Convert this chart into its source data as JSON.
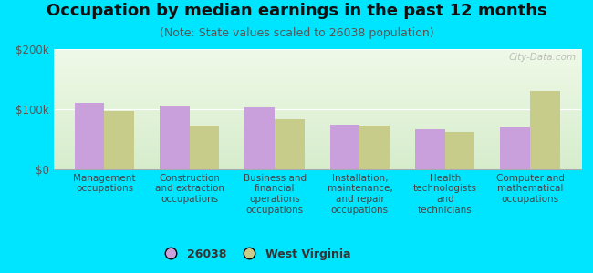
{
  "title": "Occupation by median earnings in the past 12 months",
  "subtitle": "(Note: State values scaled to 26038 population)",
  "categories": [
    "Management\noccupations",
    "Construction\nand extraction\noccupations",
    "Business and\nfinancial\noperations\noccupations",
    "Installation,\nmaintenance,\nand repair\noccupations",
    "Health\ntechnologists\nand\ntechnicians",
    "Computer and\nmathematical\noccupations"
  ],
  "values_26038": [
    110000,
    106000,
    103000,
    75000,
    67000,
    70000
  ],
  "values_wv": [
    97000,
    72000,
    84000,
    73000,
    62000,
    130000
  ],
  "color_26038": "#c9a0dc",
  "color_wv": "#c8cc8a",
  "ylim": [
    0,
    200000
  ],
  "yticks": [
    0,
    100000,
    200000
  ],
  "ytick_labels": [
    "$0",
    "$100k",
    "$200k"
  ],
  "bg_plot_top": "#d6edcc",
  "bg_plot_bottom": "#f0f9e8",
  "bg_outer": "#00e5ff",
  "bar_width": 0.35,
  "legend_labels": [
    "26038",
    "West Virginia"
  ],
  "watermark": "City-Data.com",
  "title_fontsize": 13,
  "subtitle_fontsize": 9,
  "tick_fontsize": 8.5,
  "cat_fontsize": 7.5
}
